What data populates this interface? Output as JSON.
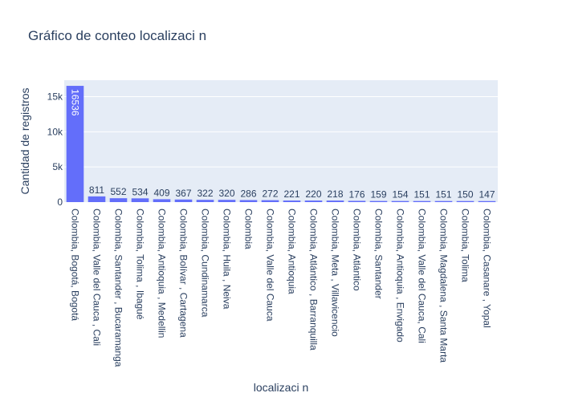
{
  "chart_data": {
    "type": "bar",
    "title": "Gráfico de conteo localizaci n",
    "xlabel": "localizaci n",
    "ylabel": "Cantidad de registros",
    "ylim": [
      0,
      17340
    ],
    "yticks": [
      0,
      5000,
      10000,
      15000
    ],
    "ytick_labels": [
      "0",
      "5k",
      "10k",
      "15k"
    ],
    "grid": true,
    "legend": "none",
    "categories": [
      "Colombia, Bogotá, Bogotá",
      "Colombia,  Valle del Cauca ,  Cali",
      "Colombia,  Santander ,  Bucaramanga",
      "Colombia,  Tolima ,  Ibagué",
      "Colombia,  Antioquia ,  Medellin",
      "Colombia,  Bolívar ,  Cartagena",
      "Colombia,  Cundinamarca",
      "Colombia,  Huila ,  Neiva",
      "Colombia",
      "Colombia,  Valle del Cauca",
      "Colombia,  Antioquia",
      "Colombia,  Atlántico ,  Barranquilla",
      "Colombia,  Meta ,  Villavicencio",
      "Colombia,  Atlántico",
      "Colombia,  Santander",
      "Colombia,  Antioquia ,  Envigado",
      "Colombia, Valle del Cauca, Cali",
      "Colombia,  Magdalena ,  Santa Marta",
      "Colombia,  Tolima",
      "Colombia,  Casanare ,  Yopal"
    ],
    "values": [
      16536,
      811,
      552,
      534,
      409,
      367,
      322,
      320,
      286,
      272,
      221,
      220,
      218,
      176,
      159,
      154,
      151,
      151,
      150,
      147
    ],
    "colors": {
      "bar": "#636efa",
      "plot_bg": "#e5ecf6",
      "grid": "#ffffff",
      "text": "#2a3f5f",
      "label_inside": "#ffffff",
      "label_outside": "#2a3f5f"
    }
  }
}
